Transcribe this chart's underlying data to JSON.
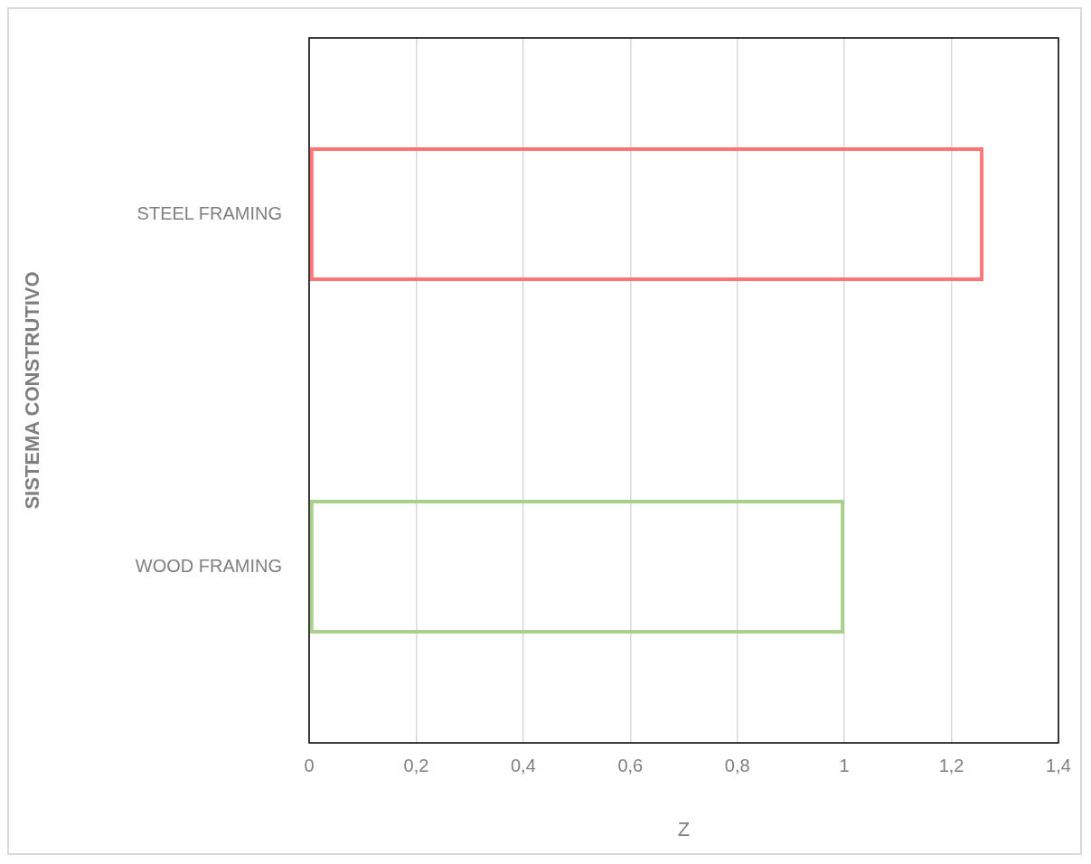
{
  "chart_data": {
    "type": "bar",
    "orientation": "horizontal",
    "xlabel": "Z",
    "ylabel": "SISTEMA CONSTRUTIVO",
    "categories": [
      "STEEL FRAMING",
      "WOOD FRAMING"
    ],
    "values": [
      1.26,
      1.0
    ],
    "colors": [
      "#ff7575",
      "#a9d18e"
    ],
    "xlim": [
      0,
      1.4
    ],
    "xticks": [
      0,
      {
        "value": 0.2,
        "label": "0,2"
      },
      {
        "value": 0.4,
        "label": "0,4"
      },
      {
        "value": 0.6,
        "label": "0,6"
      },
      {
        "value": 0.8,
        "label": "0,8"
      },
      1,
      {
        "value": 1.2,
        "label": "1,2"
      },
      {
        "value": 1.4,
        "label": "1,4"
      }
    ],
    "grid": "x"
  }
}
